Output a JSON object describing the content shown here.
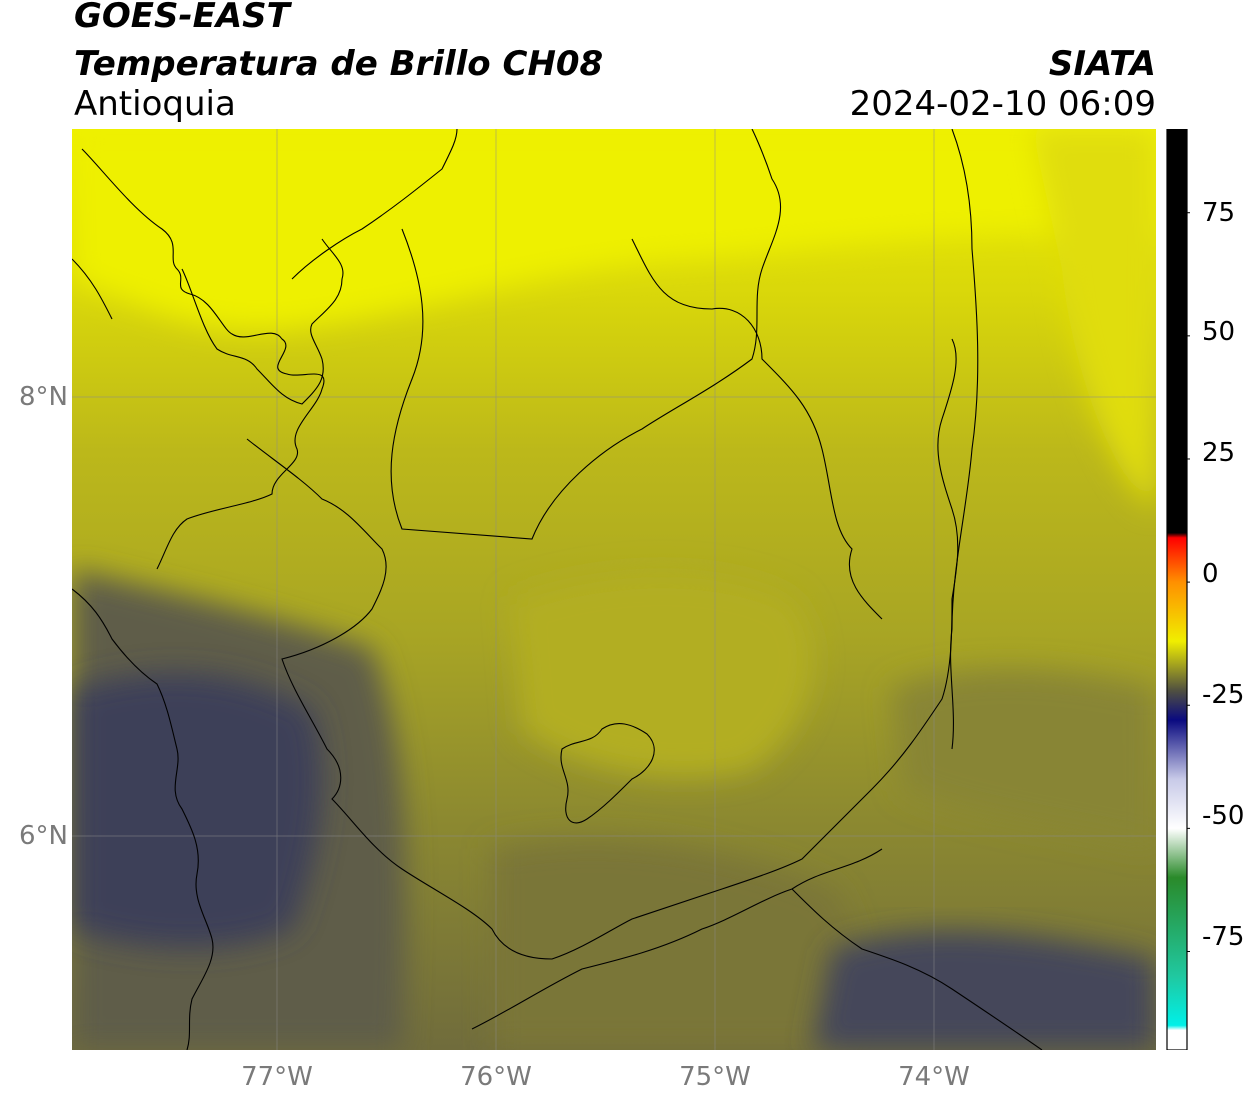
{
  "header": {
    "title_line1": "GOES-EAST",
    "title_line2": "Temperatura de Brillo CH08",
    "organization": "SIATA",
    "region": "Antioquia",
    "timestamp": "2024-02-10 06:09"
  },
  "map": {
    "lat_labels": [
      "8°N",
      "6°N"
    ],
    "lon_labels": [
      "77°W",
      "76°W",
      "75°W",
      "74°W"
    ],
    "extent": {
      "lon_min": -77.93,
      "lon_max": -72.99,
      "lat_min": 5.03,
      "lat_max": 9.23
    },
    "graticule": {
      "lats": [
        8,
        6
      ],
      "lons": [
        -77,
        -76,
        -75,
        -74
      ]
    },
    "field_colors": {
      "warm_yellow": "#eef000",
      "mid_olive": "#a8a524",
      "cool_olive": "#6e6b3c",
      "cold_slate": "#3f4154",
      "coldest_navy": "#34375e"
    }
  },
  "colorbar": {
    "tick_labels": [
      "75",
      "50",
      "25",
      "0",
      "-25",
      "-50",
      "-75"
    ],
    "tick_values": [
      75,
      50,
      25,
      0,
      -25,
      -50,
      -75
    ],
    "range": [
      -95,
      92
    ],
    "stops": [
      {
        "value": 92,
        "color": "#000000"
      },
      {
        "value": 10,
        "color": "#000000"
      },
      {
        "value": 9,
        "color": "#ff0000"
      },
      {
        "value": 0,
        "color": "#ff9000"
      },
      {
        "value": -12,
        "color": "#f0ee00"
      },
      {
        "value": -22,
        "color": "#505040"
      },
      {
        "value": -28,
        "color": "#0a0a80"
      },
      {
        "value": -40,
        "color": "#c8cae8"
      },
      {
        "value": -50,
        "color": "#ffffff"
      },
      {
        "value": -60,
        "color": "#2a8a2a"
      },
      {
        "value": -80,
        "color": "#20c8a0"
      },
      {
        "value": -90,
        "color": "#00f0e8"
      },
      {
        "value": -91,
        "color": "#ffffff"
      },
      {
        "value": -95,
        "color": "#ffffff"
      }
    ]
  }
}
